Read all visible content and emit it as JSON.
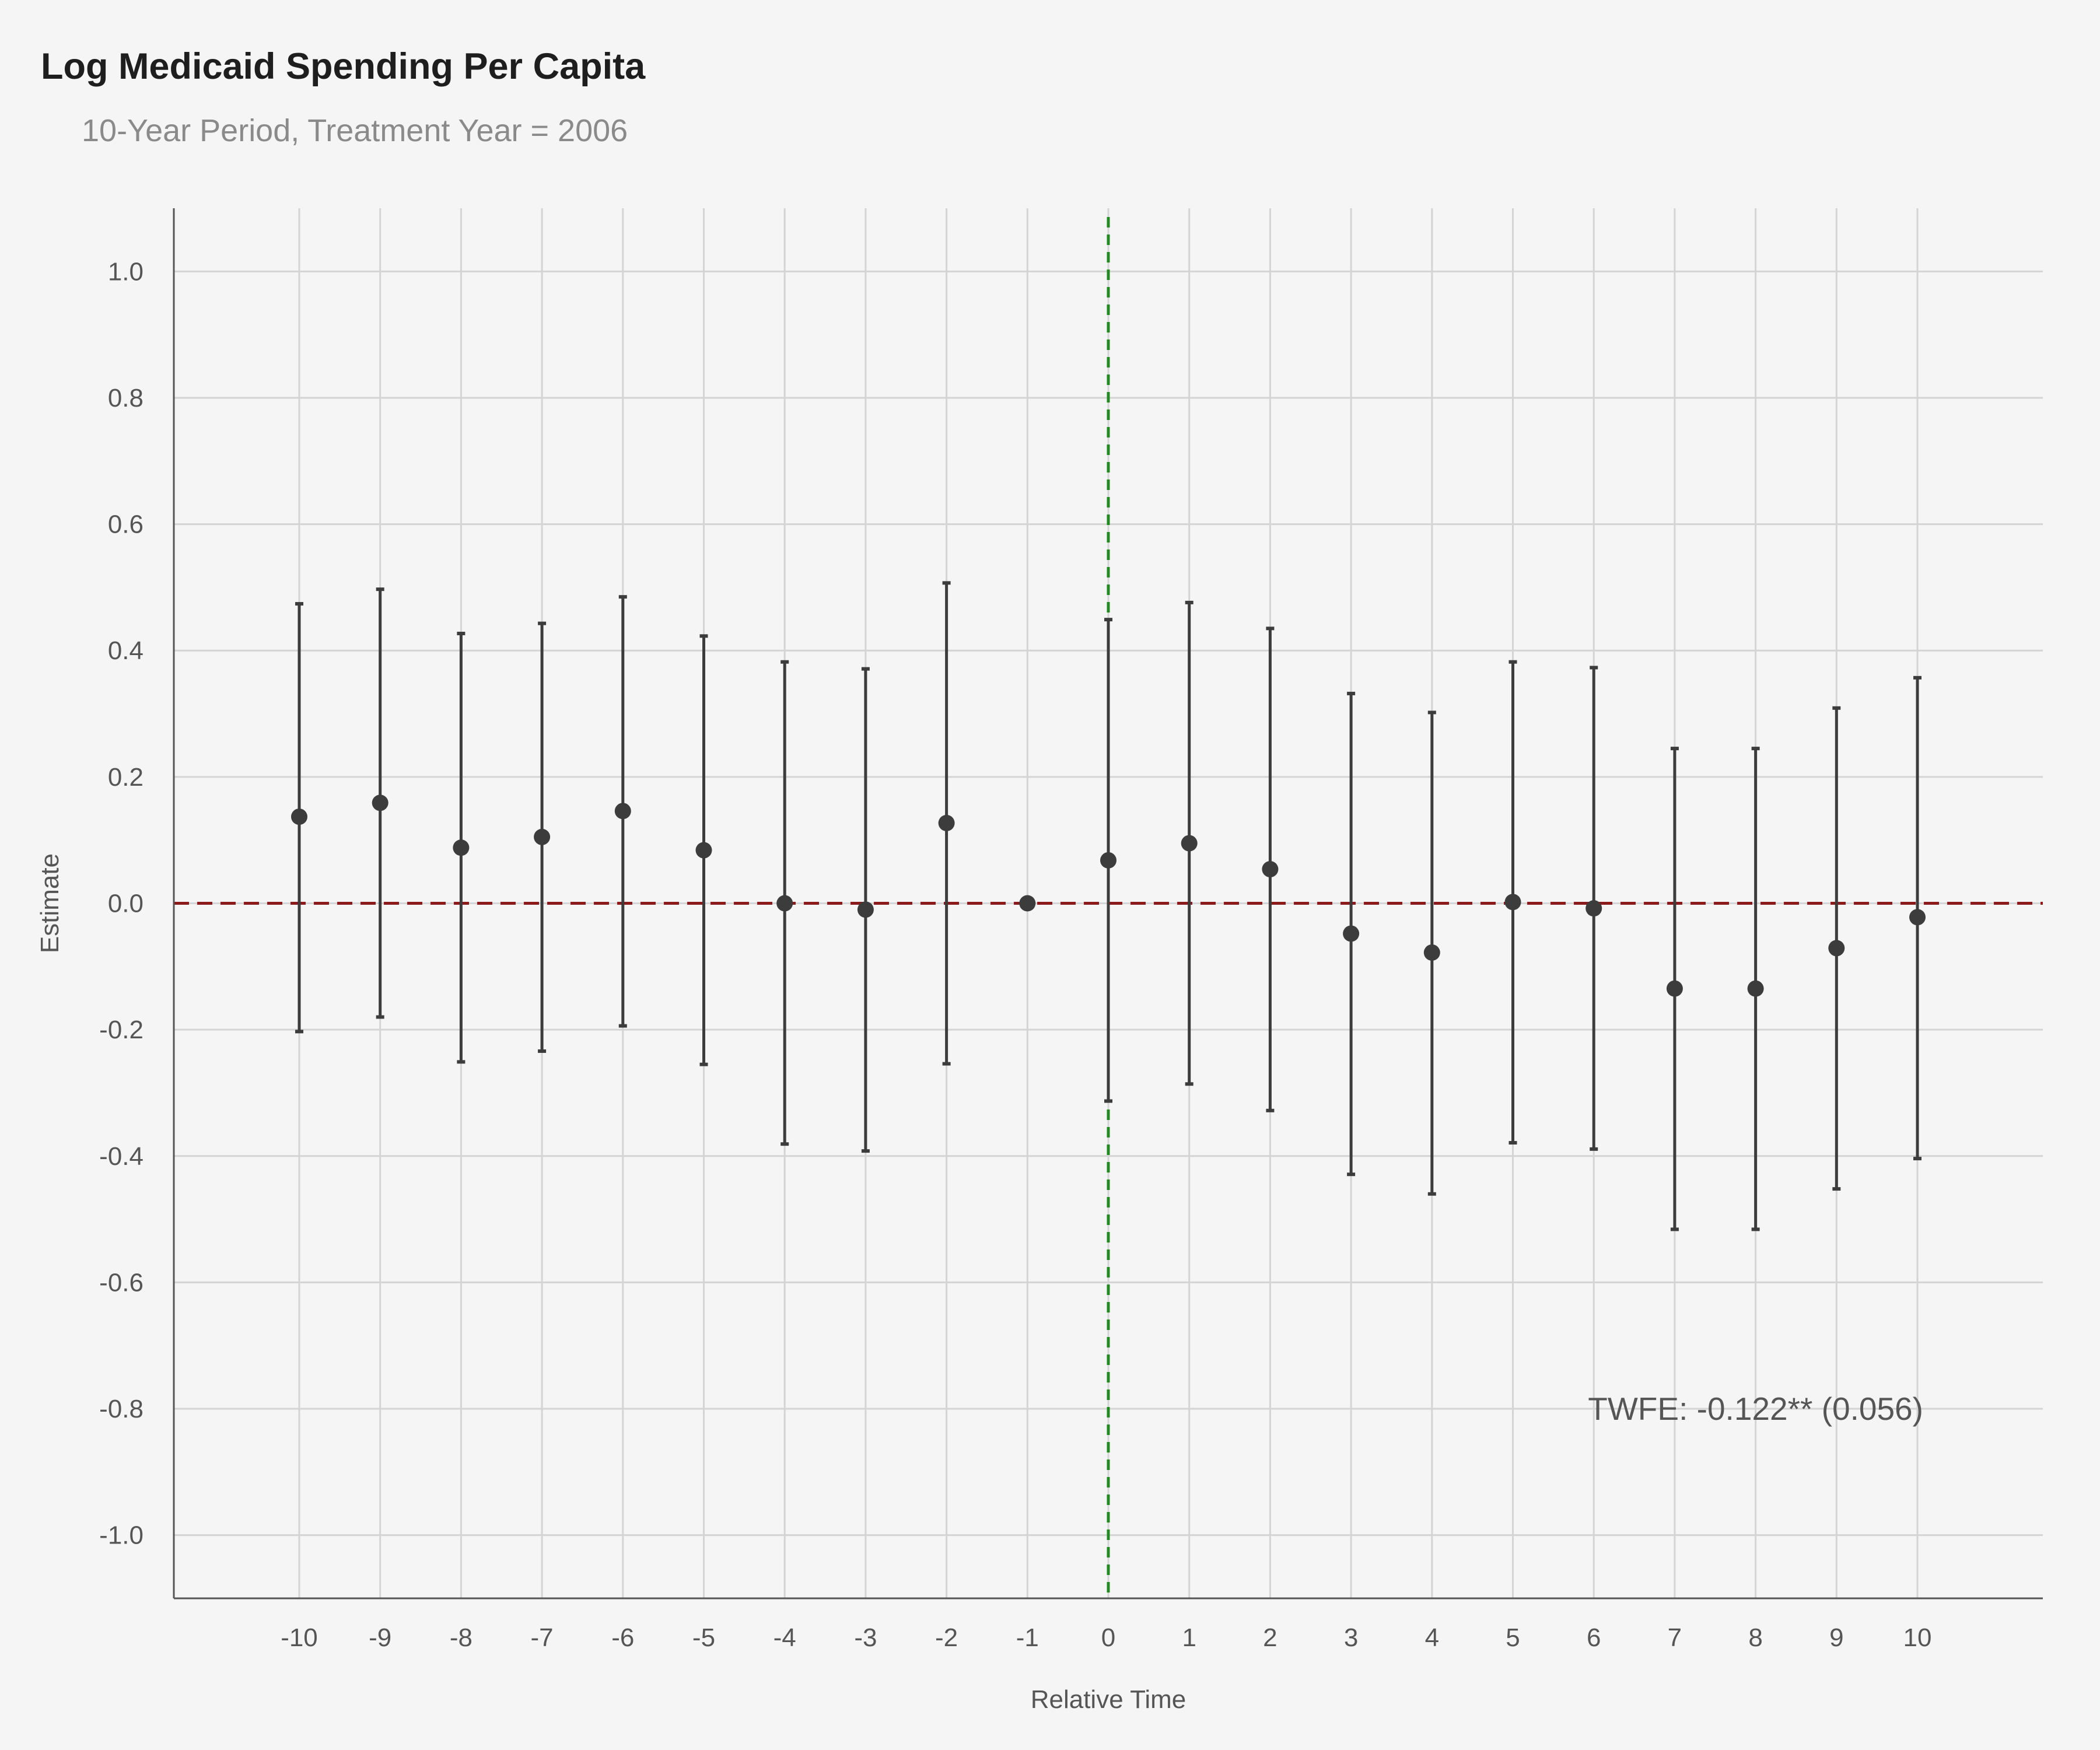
{
  "chart_data": {
    "type": "scatter",
    "title": "Log Medicaid Spending Per Capita",
    "subtitle": "10-Year Period, Treatment Year = 2006",
    "xlabel": "Relative Time",
    "ylabel": "Estimate",
    "xlim": [
      -11.55,
      11.55
    ],
    "ylim": [
      -1.1,
      1.1
    ],
    "x_ticks": [
      -10,
      -9,
      -8,
      -7,
      -6,
      -5,
      -4,
      -3,
      -2,
      -1,
      0,
      1,
      2,
      3,
      4,
      5,
      6,
      7,
      8,
      9,
      10
    ],
    "y_ticks": [
      -1.0,
      -0.8,
      -0.6,
      -0.4,
      -0.2,
      0.0,
      0.2,
      0.4,
      0.6,
      0.8,
      1.0
    ],
    "y_tick_labels": [
      "-1.0",
      "-0.8",
      "-0.6",
      "-0.4",
      "-0.2",
      "0.0",
      "0.2",
      "0.4",
      "0.6",
      "0.8",
      "1.0"
    ],
    "grid": true,
    "points": [
      {
        "x": -10,
        "y": 0.137,
        "lo": -0.203,
        "hi": 0.474
      },
      {
        "x": -9,
        "y": 0.159,
        "lo": -0.18,
        "hi": 0.497
      },
      {
        "x": -8,
        "y": 0.088,
        "lo": -0.251,
        "hi": 0.427
      },
      {
        "x": -7,
        "y": 0.105,
        "lo": -0.234,
        "hi": 0.443
      },
      {
        "x": -6,
        "y": 0.146,
        "lo": -0.194,
        "hi": 0.485
      },
      {
        "x": -5,
        "y": 0.084,
        "lo": -0.255,
        "hi": 0.423
      },
      {
        "x": -4,
        "y": 0.0,
        "lo": -0.381,
        "hi": 0.382
      },
      {
        "x": -3,
        "y": -0.01,
        "lo": -0.392,
        "hi": 0.371
      },
      {
        "x": -2,
        "y": 0.127,
        "lo": -0.254,
        "hi": 0.507
      },
      {
        "x": -1,
        "y": 0.0,
        "lo": 0.0,
        "hi": 0.0
      },
      {
        "x": 0,
        "y": 0.068,
        "lo": -0.313,
        "hi": 0.449
      },
      {
        "x": 1,
        "y": 0.095,
        "lo": -0.286,
        "hi": 0.476
      },
      {
        "x": 2,
        "y": 0.054,
        "lo": -0.328,
        "hi": 0.435
      },
      {
        "x": 3,
        "y": -0.048,
        "lo": -0.429,
        "hi": 0.332
      },
      {
        "x": 4,
        "y": -0.078,
        "lo": -0.46,
        "hi": 0.302
      },
      {
        "x": 5,
        "y": 0.002,
        "lo": -0.379,
        "hi": 0.382
      },
      {
        "x": 6,
        "y": -0.008,
        "lo": -0.389,
        "hi": 0.373
      },
      {
        "x": 7,
        "y": -0.135,
        "lo": -0.516,
        "hi": 0.245
      },
      {
        "x": 8,
        "y": -0.135,
        "lo": -0.516,
        "hi": 0.245
      },
      {
        "x": 9,
        "y": -0.071,
        "lo": -0.452,
        "hi": 0.309
      },
      {
        "x": 10,
        "y": -0.022,
        "lo": -0.404,
        "hi": 0.357
      }
    ],
    "reference_lines": [
      {
        "orientation": "horizontal",
        "value": 0,
        "color": "#8b1a1a",
        "style": "dashed"
      },
      {
        "orientation": "vertical",
        "value": 0,
        "color": "#1f8a1f",
        "style": "dashed"
      }
    ],
    "annotation": {
      "text": "TWFE: -0.122** (0.056)",
      "x": 8,
      "y": -0.8
    },
    "colors": {
      "point": "#3c3c3c",
      "grid": "#d4d4d4",
      "axis": "#555555",
      "background": "#f5f5f5"
    }
  }
}
